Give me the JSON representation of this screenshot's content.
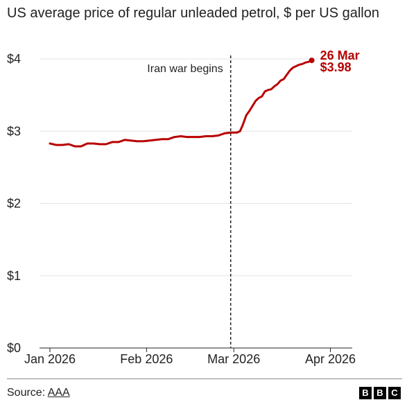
{
  "chart_data": {
    "type": "line",
    "title": "US average price of regular unleaded petrol, $ per US gallon",
    "xlabel": "",
    "ylabel": "",
    "ylim": [
      0,
      4
    ],
    "xlim": [
      "2026-01-01",
      "2026-04-08"
    ],
    "y_ticks": [
      {
        "value": 0,
        "label": "$0"
      },
      {
        "value": 1,
        "label": "$1"
      },
      {
        "value": 2,
        "label": "$2"
      },
      {
        "value": 3,
        "label": "$3"
      },
      {
        "value": 4,
        "label": "$4"
      }
    ],
    "x_ticks": [
      {
        "date": "2026-01-01",
        "label": "Jan 2026"
      },
      {
        "date": "2026-02-01",
        "label": "Feb 2026"
      },
      {
        "date": "2026-03-01",
        "label": "Mar 2026"
      },
      {
        "date": "2026-04-01",
        "label": "Apr 2026"
      }
    ],
    "grid": true,
    "line_color": "#b80000",
    "series": [
      {
        "name": "",
        "x": [
          "2026-01-01",
          "2026-01-03",
          "2026-01-05",
          "2026-01-07",
          "2026-01-09",
          "2026-01-11",
          "2026-01-13",
          "2026-01-15",
          "2026-01-17",
          "2026-01-19",
          "2026-01-21",
          "2026-01-23",
          "2026-01-25",
          "2026-01-27",
          "2026-01-29",
          "2026-01-31",
          "2026-02-02",
          "2026-02-04",
          "2026-02-06",
          "2026-02-08",
          "2026-02-10",
          "2026-02-12",
          "2026-02-14",
          "2026-02-16",
          "2026-02-18",
          "2026-02-20",
          "2026-02-22",
          "2026-02-24",
          "2026-02-26",
          "2026-02-28",
          "2026-03-02",
          "2026-03-03",
          "2026-03-04",
          "2026-03-05",
          "2026-03-06",
          "2026-03-07",
          "2026-03-08",
          "2026-03-09",
          "2026-03-10",
          "2026-03-11",
          "2026-03-12",
          "2026-03-13",
          "2026-03-14",
          "2026-03-15",
          "2026-03-16",
          "2026-03-17",
          "2026-03-18",
          "2026-03-19",
          "2026-03-20",
          "2026-03-21",
          "2026-03-22",
          "2026-03-23",
          "2026-03-24",
          "2026-03-25",
          "2026-03-26"
        ],
        "values": [
          2.83,
          2.81,
          2.81,
          2.82,
          2.79,
          2.79,
          2.83,
          2.83,
          2.82,
          2.82,
          2.85,
          2.85,
          2.88,
          2.87,
          2.86,
          2.86,
          2.87,
          2.88,
          2.89,
          2.89,
          2.92,
          2.93,
          2.92,
          2.92,
          2.92,
          2.93,
          2.93,
          2.94,
          2.97,
          2.98,
          2.98,
          3.0,
          3.1,
          3.22,
          3.28,
          3.35,
          3.42,
          3.46,
          3.48,
          3.55,
          3.57,
          3.58,
          3.62,
          3.65,
          3.7,
          3.72,
          3.78,
          3.84,
          3.88,
          3.9,
          3.92,
          3.93,
          3.95,
          3.96,
          3.98
        ]
      }
    ],
    "annotations": [
      {
        "type": "vline",
        "date": "2026-02-28",
        "label": "Iran war begins"
      },
      {
        "type": "end-label",
        "date_label": "26 Mar",
        "value_label": "$3.98"
      }
    ]
  },
  "footer": {
    "source_prefix": "Source: ",
    "source_link": "AAA",
    "logo": [
      "B",
      "B",
      "C"
    ]
  }
}
